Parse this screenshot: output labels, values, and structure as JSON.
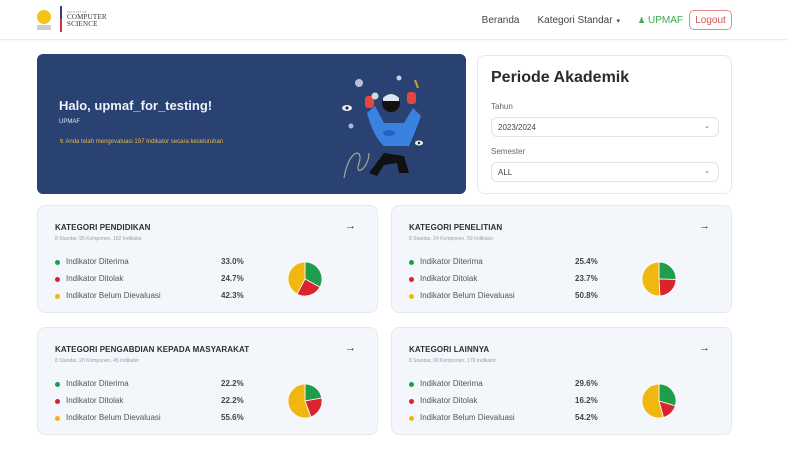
{
  "navbar": {
    "logo": {
      "emblem_icon": "university-emblem-icon",
      "line1": "FACULTY OF",
      "line2": "COMPUTER",
      "line3": "SCIENCE"
    },
    "links": [
      {
        "label": "Beranda"
      },
      {
        "label": "Kategori Standar",
        "caret": "▾"
      }
    ],
    "user": {
      "icon": "user-icon",
      "glyph": "⚠",
      "label": "UPMAF"
    },
    "logout_label": "Logout"
  },
  "hero": {
    "greeting": "Halo, upmaf_for_testing!",
    "role": "UPMAF",
    "note_icon": "activity-icon",
    "note_glyph": "↯",
    "note": "Anda telah mengevaluasi 197 Indikator secara keseluruhan"
  },
  "periode": {
    "title": "Periode Akademik",
    "tahun_label": "Tahun",
    "tahun_value": "2023/2024",
    "semester_label": "Semester",
    "semester_value": "ALL",
    "chevron": "⌄"
  },
  "colors": {
    "accepted": "#1e9e4a",
    "rejected": "#d9232e",
    "pending": "#f1b711",
    "hero_bg": "#2a4272"
  },
  "legend_labels": {
    "accepted": "Indikator Diterima",
    "rejected": "Indikator Ditolak",
    "pending": "Indikator Belum Dievaluasi"
  },
  "categories": [
    {
      "title": "KATEGORI PENDIDIKAN",
      "subtitle": "8 Standar, 95 Komponen, 182 Indikator",
      "arrow": "→",
      "accepted": "33.0%",
      "rejected": "24.7%",
      "pending": "42.3%"
    },
    {
      "title": "KATEGORI PENELITIAN",
      "subtitle": "8 Standar, 24 Komponen, 59 Indikator",
      "arrow": "→",
      "accepted": "25.4%",
      "rejected": "23.7%",
      "pending": "50.8%"
    },
    {
      "title": "KATEGORI PENGABDIAN KEPADA MASYARAKAT",
      "subtitle": "8 Standar, 20 Komponen, 45 Indikator",
      "arrow": "→",
      "accepted": "22.2%",
      "rejected": "22.2%",
      "pending": "55.6%"
    },
    {
      "title": "KATEGORI LAINNYA",
      "subtitle": "8 Standar, 90 Komponen, 179 Indikator",
      "arrow": "→",
      "accepted": "29.6%",
      "rejected": "16.2%",
      "pending": "54.2%"
    }
  ],
  "chart_data": [
    {
      "type": "pie",
      "title": "KATEGORI PENDIDIKAN",
      "categories": [
        "Indikator Diterima",
        "Indikator Ditolak",
        "Indikator Belum Dievaluasi"
      ],
      "values": [
        33.0,
        24.7,
        42.3
      ]
    },
    {
      "type": "pie",
      "title": "KATEGORI PENELITIAN",
      "categories": [
        "Indikator Diterima",
        "Indikator Ditolak",
        "Indikator Belum Dievaluasi"
      ],
      "values": [
        25.4,
        23.7,
        50.8
      ]
    },
    {
      "type": "pie",
      "title": "KATEGORI PENGABDIAN KEPADA MASYARAKAT",
      "categories": [
        "Indikator Diterima",
        "Indikator Ditolak",
        "Indikator Belum Dievaluasi"
      ],
      "values": [
        22.2,
        22.2,
        55.6
      ]
    },
    {
      "type": "pie",
      "title": "KATEGORI LAINNYA",
      "categories": [
        "Indikator Diterima",
        "Indikator Ditolak",
        "Indikator Belum Dievaluasi"
      ],
      "values": [
        29.6,
        16.2,
        54.2
      ]
    }
  ]
}
